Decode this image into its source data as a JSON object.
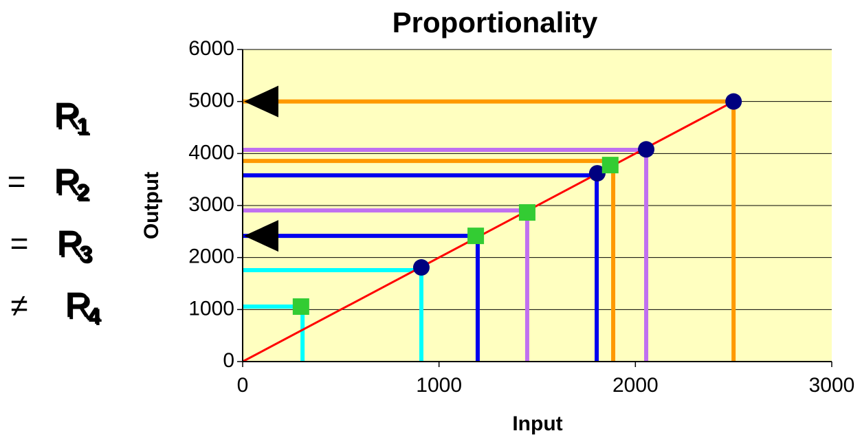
{
  "chart_data": {
    "type": "line",
    "title": "Proportionality",
    "x_label": "Input",
    "y_label": "Output",
    "xlim": [
      0,
      3000
    ],
    "xticks": [
      0,
      1000,
      2000,
      3000
    ],
    "ylim": [
      0,
      6000
    ],
    "yticks": [
      0,
      1000,
      2000,
      3000,
      4000,
      5000,
      6000
    ],
    "grid": true,
    "background": "#ffffc0",
    "trend_line": {
      "color": "#ff0000",
      "x": [
        0,
        2500
      ],
      "y": [
        0,
        5000
      ]
    },
    "guides": [
      {
        "color": "#ff9900",
        "x": 2500,
        "y": 5000,
        "arrow": true
      },
      {
        "color": "#c070f0",
        "x": 2055,
        "y": 4070,
        "arrow": false
      },
      {
        "color": "#ff9900",
        "x": 1887,
        "y": 3857,
        "arrow": false
      },
      {
        "color": "#0000ee",
        "x": 1803,
        "y": 3580,
        "arrow": false
      },
      {
        "color": "#c070f0",
        "x": 1449,
        "y": 2906,
        "arrow": false
      },
      {
        "color": "#0000ee",
        "x": 1197,
        "y": 2417,
        "arrow": true
      },
      {
        "color": "#00ffff",
        "x": 910,
        "y": 1757,
        "arrow": false
      },
      {
        "color": "#00ffff",
        "x": 305,
        "y": 1057,
        "arrow": false
      }
    ],
    "circles": {
      "color": "#000080",
      "x": [
        2500,
        2055,
        1806,
        910
      ],
      "y": [
        5000,
        4080,
        3620,
        1810
      ]
    },
    "squares": {
      "color": "#33cc33",
      "x": [
        1872,
        1449,
        1187,
        297
      ],
      "y": [
        3778,
        2867,
        2417,
        1057
      ]
    },
    "ratios": [
      {
        "symbol": "R",
        "subscript": "1",
        "color": "#ff9900"
      },
      {
        "prefix": "=",
        "symbol": "R",
        "subscript": "2",
        "color": "#c070f0"
      },
      {
        "prefix": "=",
        "symbol": "R",
        "subscript": "3",
        "color": "#3a8fb0"
      },
      {
        "prefix": "≠",
        "symbol": "R",
        "subscript": "4",
        "color": "#00ffff"
      }
    ]
  }
}
